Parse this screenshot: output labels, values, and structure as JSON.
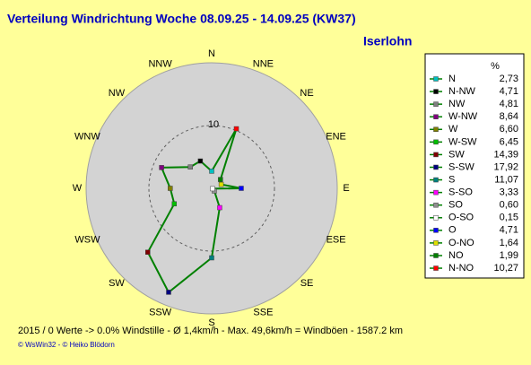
{
  "chart_data": {
    "type": "radar",
    "title": "Verteilung Windrichtung   Woche 08.09.25 - 14.09.25 (KW37)",
    "subtitle": "Iserlohn",
    "axis_labels": [
      "N",
      "NNE",
      "NE",
      "ENE",
      "E",
      "ESE",
      "SE",
      "SSE",
      "S",
      "SSW",
      "SW",
      "WSW",
      "W",
      "WNW",
      "NW",
      "NNW"
    ],
    "rlim": [
      0,
      20
    ],
    "rticks": [
      10
    ],
    "line_color": "#008000",
    "legend_header": "%",
    "series": {
      "names": [
        "N",
        "N-NW",
        "NW",
        "W-NW",
        "W",
        "W-SW",
        "SW",
        "S-SW",
        "S",
        "S-SO",
        "SO",
        "O-SO",
        "O",
        "O-NO",
        "NO",
        "N-NO"
      ],
      "values": [
        2.73,
        4.71,
        4.81,
        8.64,
        6.6,
        6.45,
        14.39,
        17.92,
        11.07,
        3.33,
        0.6,
        0.15,
        4.71,
        1.64,
        1.99,
        10.27
      ],
      "value_labels": [
        "2,73",
        "4,71",
        "4,81",
        "8,64",
        "6,60",
        "6,45",
        "14,39",
        "17,92",
        "11,07",
        "3,33",
        "0,60",
        "0,15",
        "4,71",
        "1,64",
        "1,99",
        "10,27"
      ],
      "colors": [
        "#00c0c0",
        "#000000",
        "#808080",
        "#800080",
        "#808000",
        "#00c000",
        "#800000",
        "#000080",
        "#008080",
        "#ff00ff",
        "#909090",
        "#ffffff",
        "#0000ff",
        "#e0e000",
        "#008000",
        "#ff0000"
      ]
    },
    "footer": "2015 / 0 Werte  -> 0.0% Windstille   -   Ø 1,4km/h  -  Max. 49,6km/h = Windböen   -   1587.2 km",
    "credits": "© WsWin32  -  © Heiko Blödorn"
  }
}
